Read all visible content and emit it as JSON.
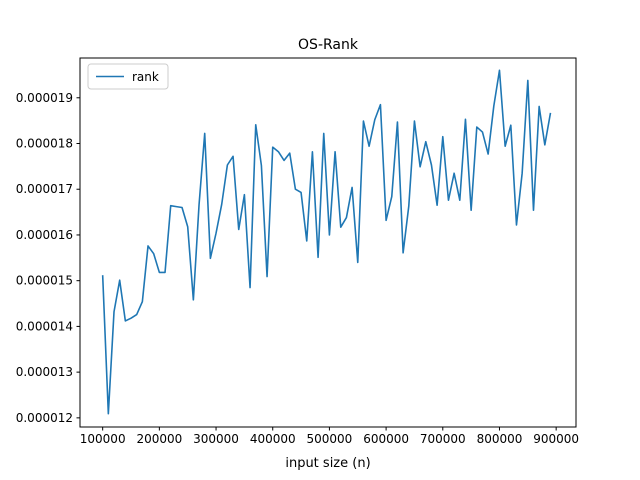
{
  "chart_data": {
    "type": "line",
    "title": "OS-Rank",
    "xlabel": "input size (n)",
    "ylabel": "",
    "xlim": [
      60000,
      935000
    ],
    "ylim": [
      1.18e-05,
      1.987e-05
    ],
    "xticks": [
      100000,
      200000,
      300000,
      400000,
      500000,
      600000,
      700000,
      800000,
      900000
    ],
    "xtick_labels": [
      "100000",
      "200000",
      "300000",
      "400000",
      "500000",
      "600000",
      "700000",
      "800000",
      "900000"
    ],
    "yticks": [
      1.2e-05,
      1.3e-05,
      1.4e-05,
      1.5e-05,
      1.6e-05,
      1.7e-05,
      1.8e-05,
      1.9e-05
    ],
    "ytick_labels": [
      "0.000012",
      "0.000013",
      "0.000014",
      "0.000015",
      "0.000016",
      "0.000017",
      "0.000018",
      "0.000019"
    ],
    "legend": {
      "position": "top-left",
      "entries": [
        "rank"
      ]
    },
    "series": [
      {
        "name": "rank",
        "color": "#1f77b4",
        "x": [
          100000,
          110000,
          120000,
          130000,
          140000,
          150000,
          160000,
          170000,
          180000,
          190000,
          200000,
          210000,
          220000,
          230000,
          240000,
          250000,
          260000,
          270000,
          280000,
          290000,
          300000,
          310000,
          320000,
          330000,
          340000,
          350000,
          360000,
          370000,
          380000,
          390000,
          400000,
          410000,
          420000,
          430000,
          440000,
          450000,
          460000,
          470000,
          480000,
          490000,
          500000,
          510000,
          520000,
          530000,
          540000,
          550000,
          560000,
          570000,
          580000,
          590000,
          600000,
          610000,
          620000,
          630000,
          640000,
          650000,
          660000,
          670000,
          680000,
          690000,
          700000,
          710000,
          720000,
          730000,
          740000,
          750000,
          760000,
          770000,
          780000,
          790000,
          800000,
          810000,
          820000,
          830000,
          840000,
          850000,
          860000,
          870000,
          880000,
          890000
        ],
        "y": [
          1.512e-05,
          1.209e-05,
          1.432e-05,
          1.501e-05,
          1.412e-05,
          1.418e-05,
          1.426e-05,
          1.454e-05,
          1.576e-05,
          1.559e-05,
          1.518e-05,
          1.518e-05,
          1.664e-05,
          1.662e-05,
          1.66e-05,
          1.618e-05,
          1.458e-05,
          1.666e-05,
          1.822e-05,
          1.549e-05,
          1.604e-05,
          1.667e-05,
          1.753e-05,
          1.772e-05,
          1.612e-05,
          1.688e-05,
          1.485e-05,
          1.841e-05,
          1.752e-05,
          1.509e-05,
          1.792e-05,
          1.782e-05,
          1.763e-05,
          1.779e-05,
          1.7e-05,
          1.693e-05,
          1.587e-05,
          1.782e-05,
          1.551e-05,
          1.822e-05,
          1.6e-05,
          1.782e-05,
          1.617e-05,
          1.638e-05,
          1.704e-05,
          1.54e-05,
          1.849e-05,
          1.794e-05,
          1.852e-05,
          1.885e-05,
          1.632e-05,
          1.684e-05,
          1.847e-05,
          1.561e-05,
          1.663e-05,
          1.849e-05,
          1.749e-05,
          1.804e-05,
          1.753e-05,
          1.665e-05,
          1.815e-05,
          1.676e-05,
          1.735e-05,
          1.676e-05,
          1.853e-05,
          1.654e-05,
          1.836e-05,
          1.825e-05,
          1.777e-05,
          1.882e-05,
          1.96e-05,
          1.794e-05,
          1.84e-05,
          1.622e-05,
          1.735e-05,
          1.938e-05,
          1.654e-05,
          1.881e-05,
          1.797e-05,
          1.867e-05
        ]
      }
    ]
  }
}
